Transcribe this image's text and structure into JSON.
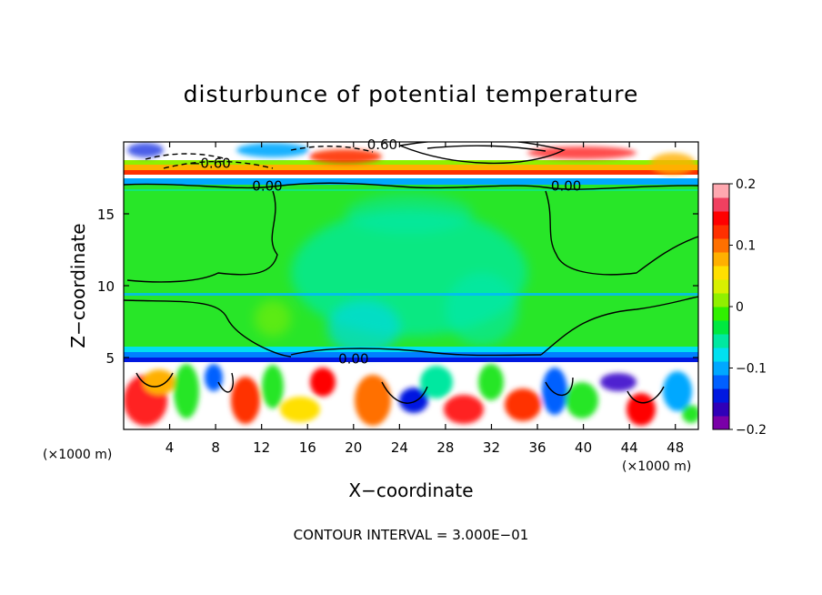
{
  "chart_data": {
    "type": "heatmap",
    "title": "disturbunce of potential temperature",
    "xlabel": "X−coordinate",
    "ylabel": "Z−coordinate",
    "x_unit": "(×1000 m)",
    "y_unit": "(×1000 m)",
    "xlim": [
      0,
      50
    ],
    "ylim": [
      0,
      20
    ],
    "x_ticks": [
      4,
      8,
      12,
      16,
      20,
      24,
      28,
      32,
      36,
      40,
      44,
      48
    ],
    "y_ticks": [
      5,
      10,
      15
    ],
    "colorbar": {
      "min": -0.2,
      "max": 0.2,
      "tick_values": [
        0.2,
        0.1,
        0,
        -0.1,
        -0.2
      ],
      "tick_labels": [
        "0.2",
        "0.1",
        "0",
        "−0.1",
        "−0.2"
      ],
      "colors": [
        "#7a00a8",
        "#3000b8",
        "#0018e0",
        "#0060ff",
        "#00a8ff",
        "#00e0f0",
        "#00e8a0",
        "#00e840",
        "#30f000",
        "#90f000",
        "#d8f000",
        "#ffe000",
        "#ffb000",
        "#ff7000",
        "#ff3000",
        "#ff0000",
        "#f04060",
        "#ffa8b0"
      ]
    },
    "contour_labels": [
      {
        "text": "0.60",
        "x": 22.5,
        "z": 19.5
      },
      {
        "text": "−0.60",
        "x": 7.5,
        "z": 18.2
      },
      {
        "text": "0.00",
        "x": 12.5,
        "z": 16.6
      },
      {
        "text": "0.00",
        "x": 38.5,
        "z": 16.6
      },
      {
        "text": "0.00",
        "x": 20.0,
        "z": 4.6
      }
    ],
    "contour_interval_label": "CONTOUR INTERVAL =  3.000E−01",
    "grid": false
  }
}
